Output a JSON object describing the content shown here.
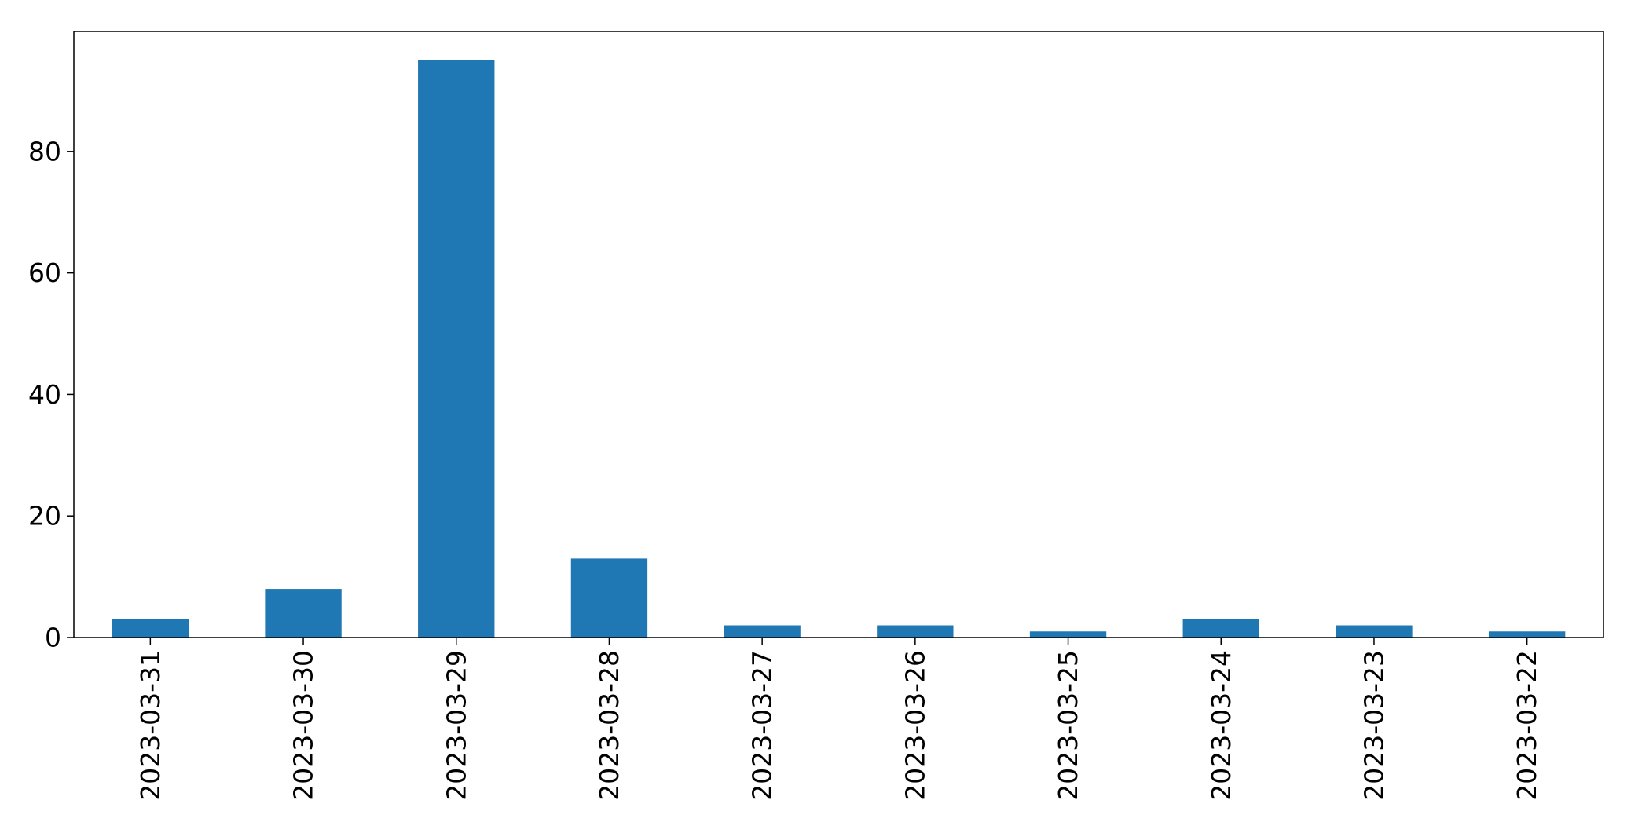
{
  "chart_data": {
    "type": "bar",
    "categories": [
      "2023-03-31",
      "2023-03-30",
      "2023-03-29",
      "2023-03-28",
      "2023-03-27",
      "2023-03-26",
      "2023-03-25",
      "2023-03-24",
      "2023-03-23",
      "2023-03-22"
    ],
    "values": [
      3,
      8,
      95,
      13,
      2,
      2,
      1,
      3,
      2,
      1
    ],
    "title": "",
    "xlabel": "",
    "ylabel": "",
    "ylim": [
      0,
      99.75
    ],
    "yticks": [
      0,
      20,
      40,
      60,
      80
    ],
    "grid": false,
    "legend": "none",
    "bar_color": "#1f77b4"
  }
}
